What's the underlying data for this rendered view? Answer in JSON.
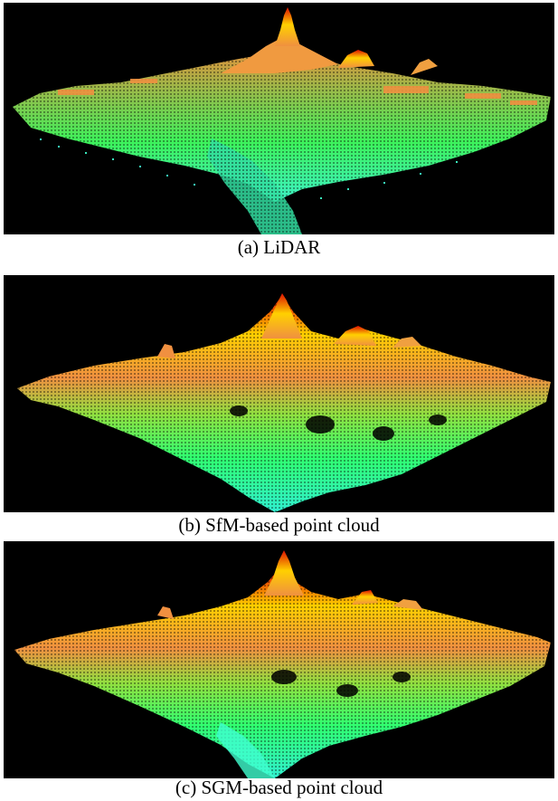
{
  "figure": {
    "panels": [
      {
        "caption": "(a) LiDAR"
      },
      {
        "caption": "(b) SfM-based point cloud"
      },
      {
        "caption": "(c) SGM-based point cloud"
      }
    ],
    "colors": {
      "background": "#000000",
      "low": "#33ffcc",
      "mid_low": "#33ff66",
      "mid": "#99e633",
      "mid_high": "#f0a040",
      "peak": "#ffdd00",
      "top": "#dd1100"
    }
  }
}
